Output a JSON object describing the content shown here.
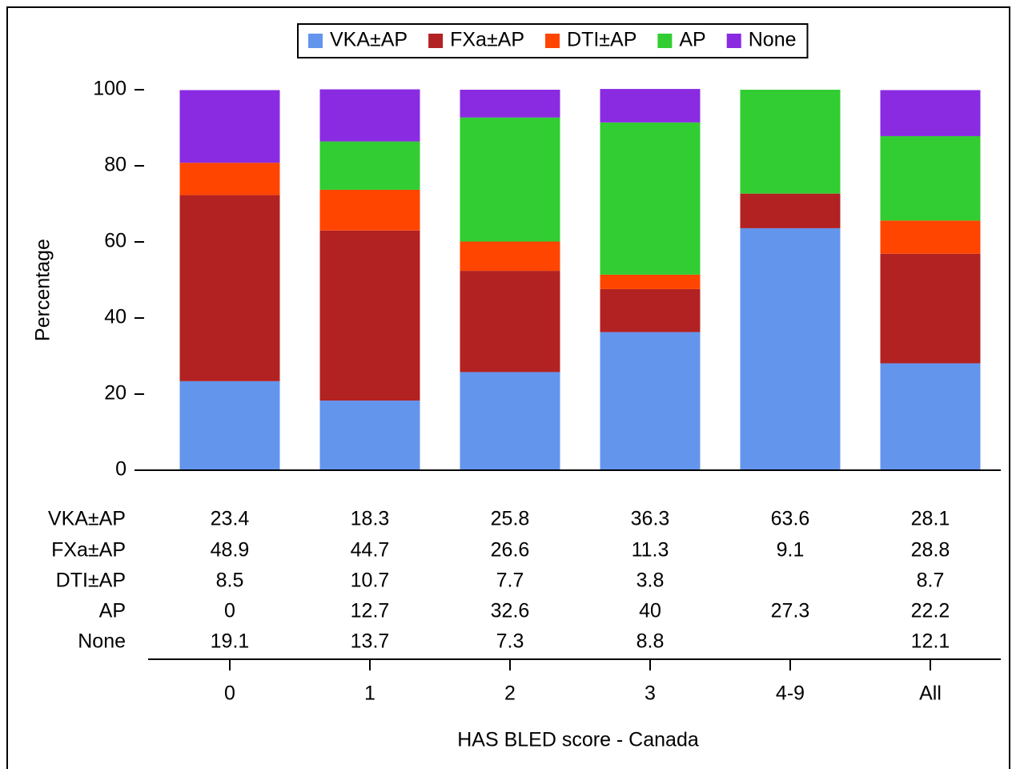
{
  "chart_data": {
    "type": "stacked_bar",
    "categories": [
      "0",
      "1",
      "2",
      "3",
      "4-9",
      "All"
    ],
    "series": [
      {
        "name": "VKA±AP",
        "color": "#6495ed",
        "values": [
          23.4,
          18.3,
          25.8,
          36.3,
          63.6,
          28.1
        ]
      },
      {
        "name": "FXa±AP",
        "color": "#b22222",
        "values": [
          48.9,
          44.7,
          26.6,
          11.3,
          9.1,
          28.8
        ]
      },
      {
        "name": "DTI±AP",
        "color": "#ff4500",
        "values": [
          8.5,
          10.7,
          7.7,
          3.8,
          null,
          8.7
        ]
      },
      {
        "name": "AP",
        "color": "#32cd32",
        "values": [
          0,
          12.7,
          32.6,
          40,
          27.3,
          22.2
        ]
      },
      {
        "name": "None",
        "color": "#8a2be2",
        "values": [
          19.1,
          13.7,
          7.3,
          8.8,
          null,
          12.1
        ]
      }
    ],
    "ylabel": "Percentage",
    "xlabel": "HAS BLED score - Canada",
    "ylim": [
      0,
      100
    ],
    "yticks": [
      0,
      20,
      40,
      60,
      80,
      100
    ],
    "legend": "top"
  }
}
